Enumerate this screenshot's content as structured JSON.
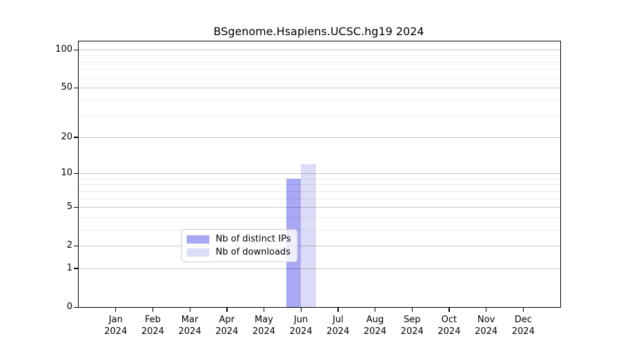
{
  "chart_data": {
    "type": "bar",
    "title": "BSgenome.Hsapiens.UCSC.hg19 2024",
    "categories": [
      "Jan",
      "Feb",
      "Mar",
      "Apr",
      "May",
      "Jun",
      "Jul",
      "Aug",
      "Sep",
      "Oct",
      "Nov",
      "Dec"
    ],
    "year": "2024",
    "series": [
      {
        "name": "Nb of distinct IPs",
        "color": "#a8a8f5",
        "values": [
          0,
          0,
          0,
          0,
          0,
          9,
          0,
          0,
          0,
          0,
          0,
          0
        ]
      },
      {
        "name": "Nb of downloads",
        "color": "#dcdcf8",
        "values": [
          0,
          0,
          0,
          0,
          0,
          12,
          0,
          0,
          0,
          0,
          0,
          0
        ]
      }
    ],
    "yscale": "log1p",
    "yticks": [
      0,
      1,
      2,
      5,
      10,
      20,
      50,
      100
    ],
    "minor_gridlines": [
      3,
      4,
      6,
      7,
      8,
      9,
      30,
      40,
      60,
      70,
      80,
      90
    ],
    "ylim": [
      0,
      116
    ],
    "grid": true,
    "legend_position": "bottom-center",
    "xlabel": "",
    "ylabel": ""
  }
}
